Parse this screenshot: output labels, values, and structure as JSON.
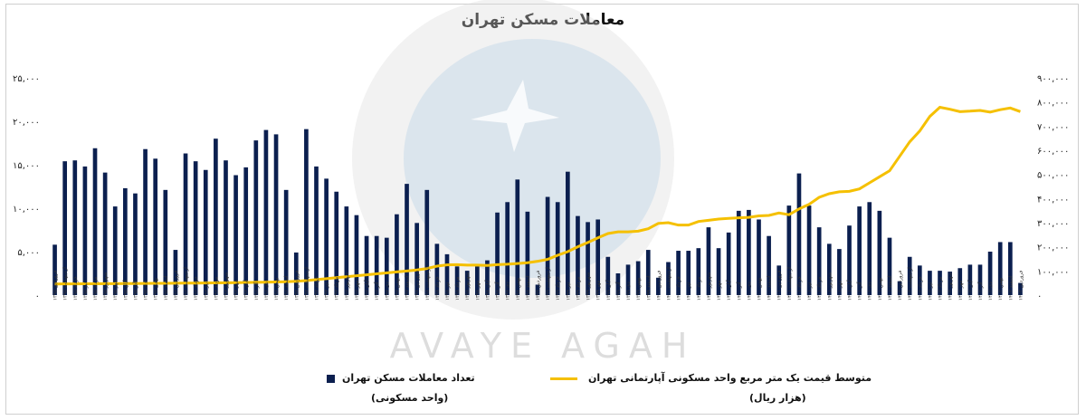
{
  "chart_data": {
    "type": "bar",
    "title": "معاملات مسکن تهران",
    "categories": [
      "فروردین ۱۳۹۵",
      "اردیبهشت ۱۳۹۵",
      "خرداد ۱۳۹۵",
      "تیر ۱۳۹۵",
      "مرداد ۱۳۹۵",
      "شهریور ۱۳۹۵",
      "مهر ۱۳۹۵",
      "آبان ۱۳۹۵",
      "آذر ۱۳۹۵",
      "دی ۱۳۹۵",
      "بهمن ۱۳۹۵",
      "اسفند ۱۳۹۵",
      "فروردین ۱۳۹۶",
      "اردیبهشت ۱۳۹۶",
      "خرداد ۱۳۹۶",
      "تیر ۱۳۹۶",
      "مرداد ۱۳۹۶",
      "شهریور ۱۳۹۶",
      "مهر ۱۳۹۶",
      "آبان ۱۳۹۶",
      "آذر ۱۳۹۶",
      "دی ۱۳۹۶",
      "بهمن ۱۳۹۶",
      "اسفند ۱۳۹۶",
      "فروردین ۱۳۹۷",
      "اردیبهشت ۱۳۹۷",
      "خرداد ۱۳۹۷",
      "تیر ۱۳۹۷",
      "مرداد ۱۳۹۷",
      "شهریور ۱۳۹۷",
      "مهر ۱۳۹۷",
      "آبان ۱۳۹۷",
      "آذر ۱۳۹۷",
      "دی ۱۳۹۷",
      "بهمن ۱۳۹۷",
      "اسفند ۱۳۹۷",
      "فروردین ۱۳۹۸",
      "اردیبهشت ۱۳۹۸",
      "خرداد ۱۳۹۸",
      "تیر ۱۳۹۸",
      "مرداد ۱۳۹۸",
      "شهریور ۱۳۹۸",
      "مهر ۱۳۹۸",
      "آبان ۱۳۹۸",
      "آذر ۱۳۹۸",
      "دی ۱۳۹۸",
      "بهمن ۱۳۹۸",
      "اسفند ۱۳۹۸",
      "فروردین ۱۳۹۹",
      "اردیبهشت ۱۳۹۹",
      "خرداد ۱۳۹۹",
      "تیر ۱۳۹۹",
      "مرداد ۱۳۹۹",
      "شهریور ۱۳۹۹",
      "مهر ۱۳۹۹",
      "آبان ۱۳۹۹",
      "آذر ۱۳۹۹",
      "دی ۱۳۹۹",
      "بهمن ۱۳۹۹",
      "اسفند ۱۳۹۹",
      "فروردین ۱۴۰۰",
      "اردیبهشت ۱۴۰۰",
      "خرداد ۱۴۰۰",
      "تیر ۱۴۰۰",
      "مرداد ۱۴۰۰",
      "شهریور ۱۴۰۰",
      "مهر ۱۴۰۰",
      "آبان ۱۴۰۰",
      "آذر ۱۴۰۰",
      "دی ۱۴۰۰",
      "بهمن ۱۴۰۰",
      "اسفند ۱۴۰۰",
      "فروردین ۱۴۰۱",
      "اردیبهشت ۱۴۰۱",
      "خرداد ۱۴۰۱",
      "تیر ۱۴۰۱",
      "مرداد ۱۴۰۱",
      "شهریور ۱۴۰۱",
      "مهر ۱۴۰۱",
      "آبان ۱۴۰۱",
      "آذر ۱۴۰۱",
      "دی ۱۴۰۱",
      "بهمن ۱۴۰۱",
      "اسفند ۱۴۰۱",
      "فروردین ۱۴۰۲",
      "اردیبهشت ۱۴۰۲",
      "خرداد ۱۴۰۲",
      "تیر ۱۴۰۲",
      "مرداد ۱۴۰۲",
      "شهریور ۱۴۰۲",
      "مهر ۱۴۰۲",
      "آبان ۱۴۰۲",
      "آذر ۱۴۰۲",
      "دی ۱۴۰۲",
      "بهمن ۱۴۰۲",
      "اسفند ۱۴۰۲",
      "فروردین ۱۴۰۳"
    ],
    "series": [
      {
        "name": "تعداد معاملات مسکن تهران",
        "unit": "(واحد مسکونی)",
        "axis": "left",
        "color": "#0b1f4f",
        "values": [
          5800,
          15400,
          15500,
          14800,
          16900,
          14100,
          10200,
          12300,
          11700,
          16800,
          15700,
          12100,
          5200,
          16300,
          15400,
          14400,
          18000,
          15500,
          13800,
          14700,
          17800,
          19000,
          18500,
          12100,
          4900,
          19100,
          14800,
          13400,
          11900,
          10200,
          9200,
          6800,
          6800,
          6600,
          9300,
          12800,
          8300,
          12100,
          5900,
          4700,
          3300,
          2800,
          3300,
          4000,
          9500,
          10700,
          13300,
          9600,
          1200,
          11300,
          10700,
          14200,
          9100,
          8400,
          8700,
          4400,
          2500,
          3500,
          3900,
          5200,
          2000,
          3800,
          5100,
          5100,
          5400,
          7800,
          5400,
          7200,
          9700,
          9800,
          8700,
          6800,
          3400,
          10300,
          14000,
          10300,
          7800,
          5900,
          5300,
          8000,
          10200,
          10700,
          9700,
          6600,
          1600,
          4400,
          3400,
          2800,
          2800,
          2700,
          3100,
          3500,
          3500,
          5000,
          6100,
          6100,
          1400
        ]
      },
      {
        "name": "متوسط قیمت یک متر مربع واحد مسکونی آپارتمانی تهران",
        "unit": "(هزار ریال)",
        "axis": "right",
        "color": "#f5c000",
        "values": [
          46000,
          46200,
          46500,
          46800,
          47000,
          47200,
          47500,
          47800,
          48000,
          48300,
          48600,
          48900,
          49200,
          49500,
          49800,
          50100,
          50500,
          51000,
          51500,
          52000,
          52800,
          53500,
          54500,
          55500,
          57000,
          60000,
          64000,
          68000,
          72000,
          76000,
          80000,
          84000,
          88000,
          92000,
          96000,
          100000,
          104000,
          110000,
          120000,
          125000,
          126000,
          124000,
          124000,
          123000,
          126000,
          128000,
          131000,
          134000,
          140000,
          148000,
          165000,
          180000,
          200000,
          218000,
          237000,
          255000,
          262000,
          262000,
          265000,
          275000,
          297000,
          300000,
          290000,
          290000,
          305000,
          310000,
          315000,
          318000,
          320000,
          322000,
          328000,
          330000,
          340000,
          333000,
          357000,
          376000,
          405000,
          420000,
          428000,
          430000,
          440000,
          465000,
          490000,
          515000,
          575000,
          635000,
          680000,
          740000,
          778000,
          770000,
          760000,
          762000,
          765000,
          758000,
          768000,
          775000,
          760000
        ]
      }
    ],
    "left_axis": {
      "ylim": [
        0,
        25000
      ],
      "ticks": [
        "۰",
        "۵,۰۰۰",
        "۱۰,۰۰۰",
        "۱۵,۰۰۰",
        "۲۰,۰۰۰",
        "۲۵,۰۰۰"
      ]
    },
    "right_axis": {
      "ylim": [
        0,
        900000
      ],
      "ticks": [
        "۰",
        "۱۰۰,۰۰۰",
        "۲۰۰,۰۰۰",
        "۳۰۰,۰۰۰",
        "۴۰۰,۰۰۰",
        "۵۰۰,۰۰۰",
        "۶۰۰,۰۰۰",
        "۷۰۰,۰۰۰",
        "۸۰۰,۰۰۰",
        "۹۰۰,۰۰۰"
      ]
    },
    "grid": false,
    "legend_position": "bottom",
    "watermark": "AVAYE AGAH"
  }
}
